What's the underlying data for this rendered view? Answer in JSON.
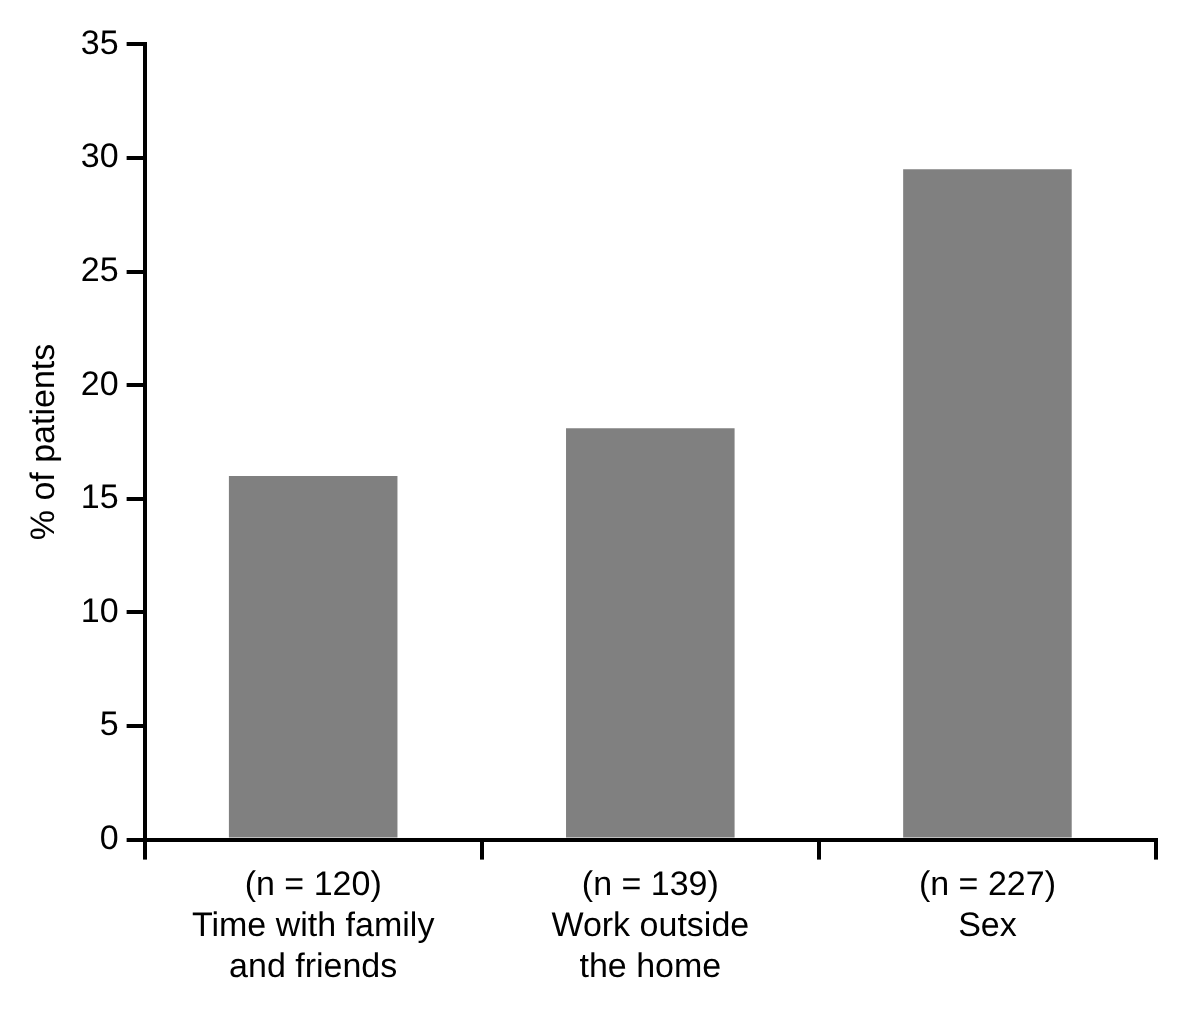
{
  "chart_data": {
    "type": "bar",
    "categories": [
      "(n = 120)\nTime with family\nand friends",
      "(n = 139)\nWork outside\nthe home",
      "(n = 227)\nSex"
    ],
    "values": [
      16,
      18.1,
      29.5
    ],
    "color": "#808080",
    "ylabel": "% of patients",
    "ylim": [
      0,
      35
    ],
    "yticks": [
      0,
      5,
      10,
      15,
      20,
      25,
      30,
      35
    ],
    "grid": false,
    "legend": false
  }
}
